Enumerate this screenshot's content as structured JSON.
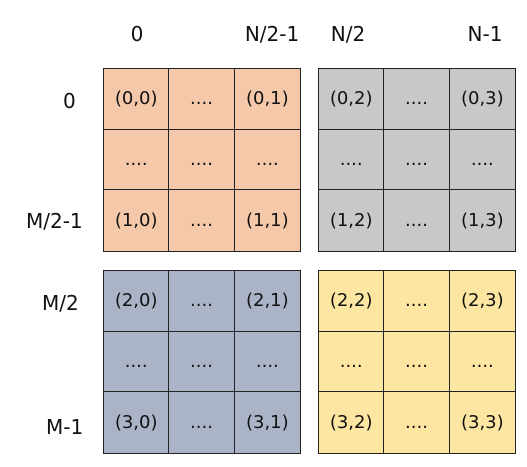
{
  "column_labels": [
    "0",
    "N/2-1",
    "N/2",
    "N-1"
  ],
  "row_labels": [
    "0",
    "M/2-1",
    "M/2",
    "M-1"
  ],
  "blocks": [
    {
      "color": "#f6c8aa",
      "cells": [
        [
          "(0,0)",
          "....",
          "(0,1)"
        ],
        [
          "....",
          "....",
          "...."
        ],
        [
          "(1,0)",
          "....",
          "(1,1)"
        ]
      ]
    },
    {
      "color": "#c8c8c8",
      "cells": [
        [
          "(0,2)",
          "....",
          "(0,3)"
        ],
        [
          "....",
          "....",
          "...."
        ],
        [
          "(1,2)",
          "....",
          "(1,3)"
        ]
      ]
    },
    {
      "color": "#aab4c6",
      "cells": [
        [
          "(2,0)",
          "....",
          "(2,1)"
        ],
        [
          "....",
          "....",
          "...."
        ],
        [
          "(3,0)",
          "....",
          "(3,1)"
        ]
      ]
    },
    {
      "color": "#fde6a2",
      "cells": [
        [
          "(2,2)",
          "....",
          "(2,3)"
        ],
        [
          "....",
          "....",
          "...."
        ],
        [
          "(3,2)",
          "....",
          "(3,3)"
        ]
      ]
    }
  ]
}
